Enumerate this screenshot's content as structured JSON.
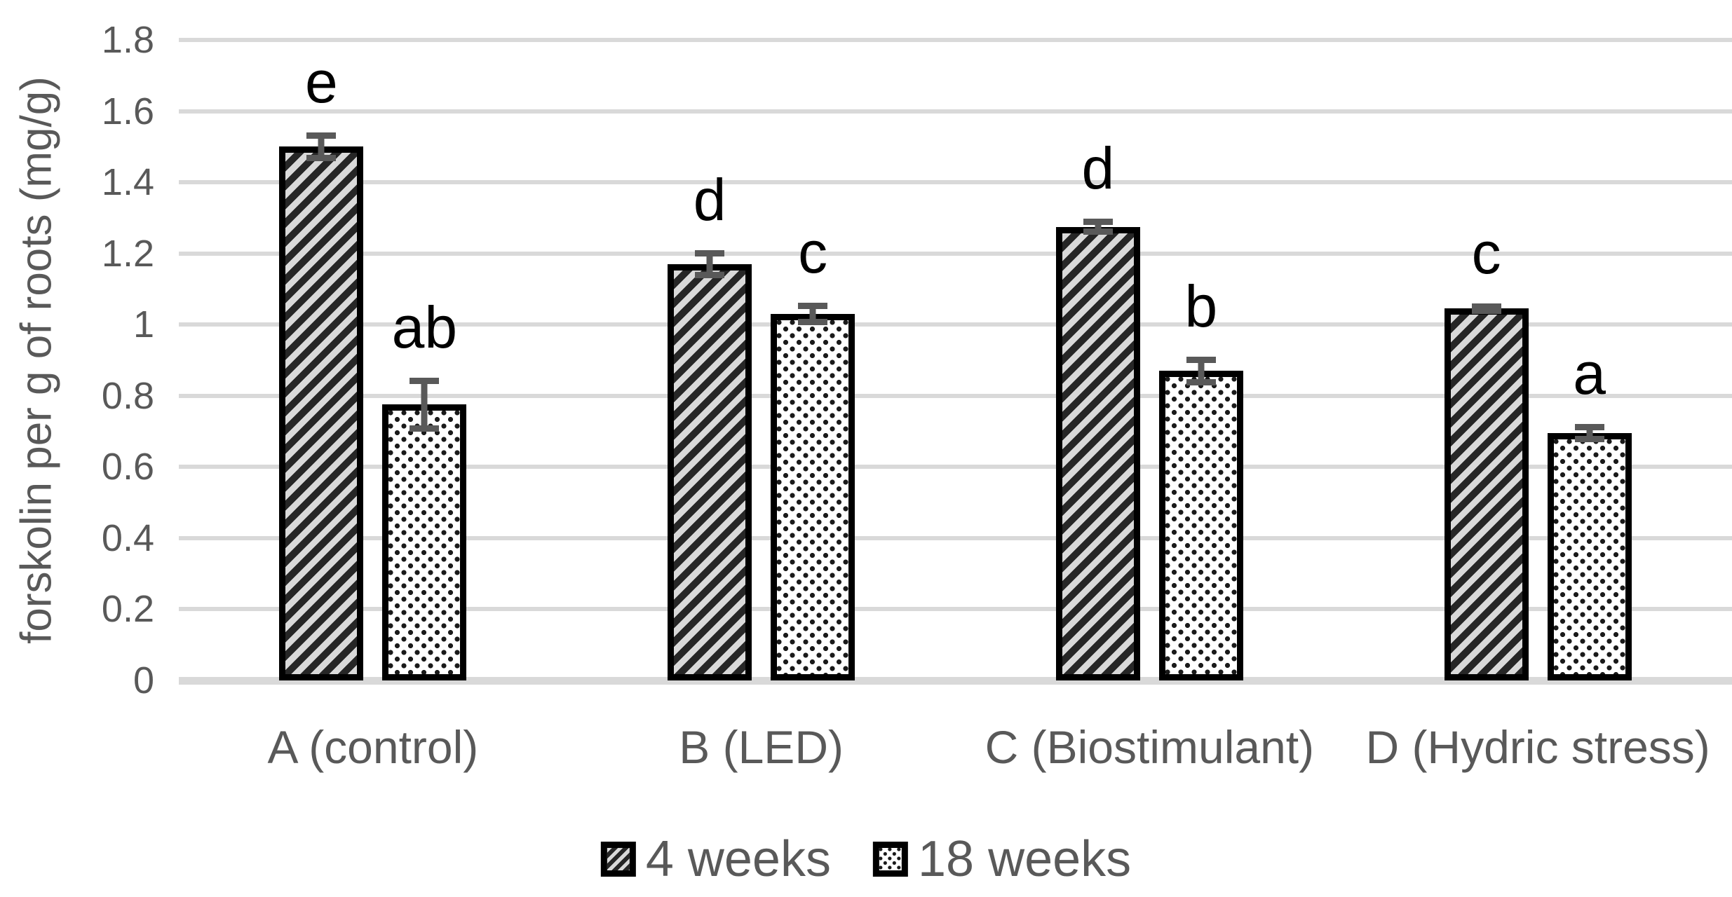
{
  "chart_data": {
    "type": "bar",
    "title": "",
    "xlabel": "",
    "ylabel": "forskolin per g of roots (mg/g)",
    "ylim": [
      0,
      1.8
    ],
    "ytick_step": 0.2,
    "ytick_labels": [
      "1.8",
      "1.6",
      "1.4",
      "1.2",
      "1",
      "0.8",
      "0.6",
      "0.4",
      "0.2",
      "0"
    ],
    "ytick_values": [
      1.8,
      1.6,
      1.4,
      1.2,
      1.0,
      0.8,
      0.6,
      0.4,
      0.2,
      0
    ],
    "grid": true,
    "legend_position": "bottom-center",
    "categories": [
      "A (control)",
      "B (LED)",
      "C (Biostimulant)",
      "D (Hydric stress)"
    ],
    "series": [
      {
        "name": "4 weeks",
        "pattern": "diagonal-hatch",
        "values": [
          1.5,
          1.17,
          1.275,
          1.045
        ],
        "errors": [
          0.04,
          0.04,
          0.022,
          0.015
        ],
        "letters": [
          "e",
          "d",
          "d",
          "c"
        ]
      },
      {
        "name": "18 weeks",
        "pattern": "square-dots",
        "values": [
          0.775,
          1.03,
          0.87,
          0.695
        ],
        "errors": [
          0.075,
          0.032,
          0.04,
          0.025
        ],
        "letters": [
          "ab",
          "c",
          "b",
          "a"
        ]
      }
    ]
  },
  "style": {
    "background": "#ffffff",
    "grid_color": "#d9d9d9",
    "axis_text_color": "#595959",
    "error_bar_color": "#595959",
    "letter_color": "#000000",
    "bar_border_color": "#000000",
    "hatch_dark_color": "#262626",
    "hatch_light_color": "#d9d9d9",
    "dot_color": "#1a1a1a"
  }
}
